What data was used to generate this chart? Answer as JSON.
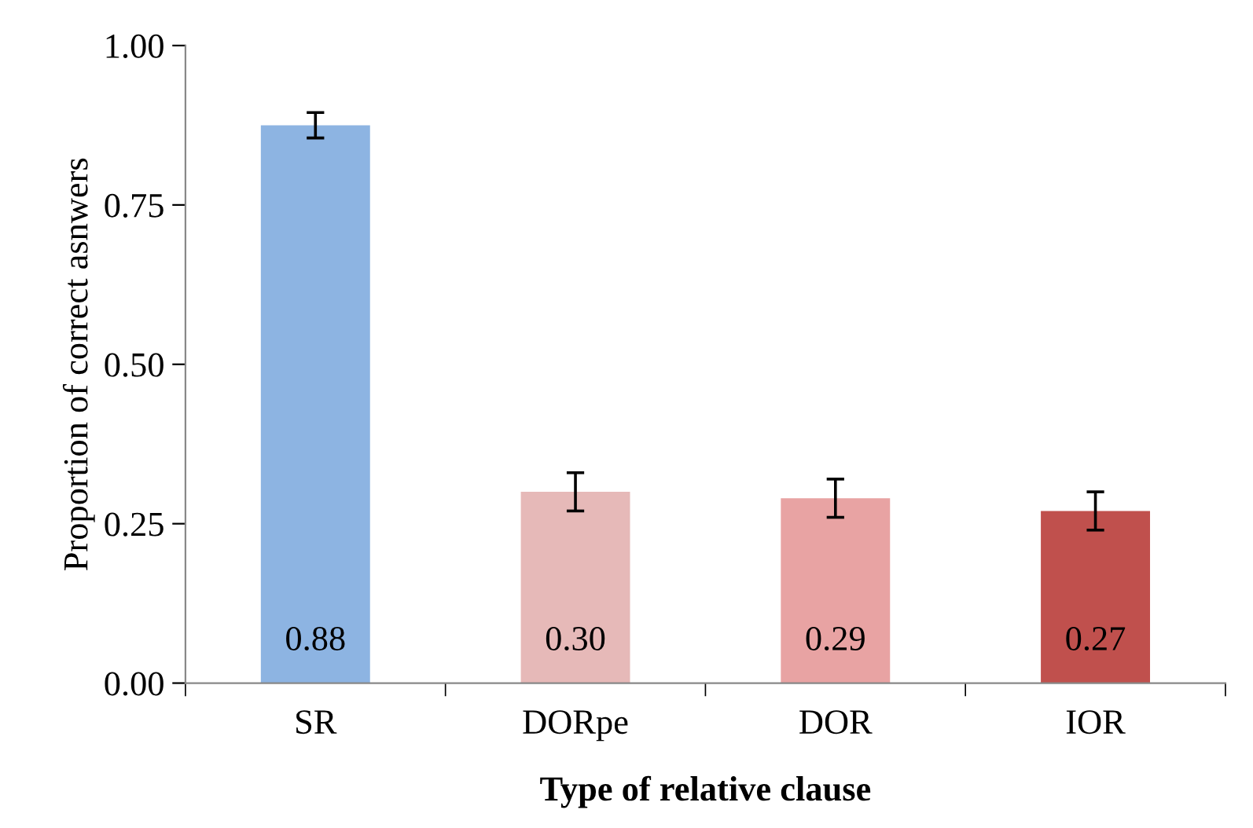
{
  "chart_data": {
    "type": "bar",
    "xlabel": "Type of relative clause",
    "ylabel": "Proportion of correct asnwers",
    "categories": [
      "SR",
      "DORpe",
      "DOR",
      "IOR"
    ],
    "values": [
      0.875,
      0.3,
      0.29,
      0.27
    ],
    "colors": [
      "#8db4e2",
      "#e6b9b8",
      "#e8a3a3",
      "#c0504d"
    ],
    "errors": [
      0.02,
      0.03,
      0.03,
      0.03
    ],
    "value_labels": [
      "0.88",
      "0.30",
      "0.29",
      "0.27"
    ],
    "ylim": [
      0,
      1
    ],
    "yticks": [
      {
        "value": 0,
        "label": "0.00"
      },
      {
        "value": 0.25,
        "label": "0.25"
      },
      {
        "value": 0.5,
        "label": "0.50"
      },
      {
        "value": 0.75,
        "label": "0.75"
      },
      {
        "value": 1,
        "label": "1.00"
      }
    ],
    "grid": false,
    "legend": false
  }
}
